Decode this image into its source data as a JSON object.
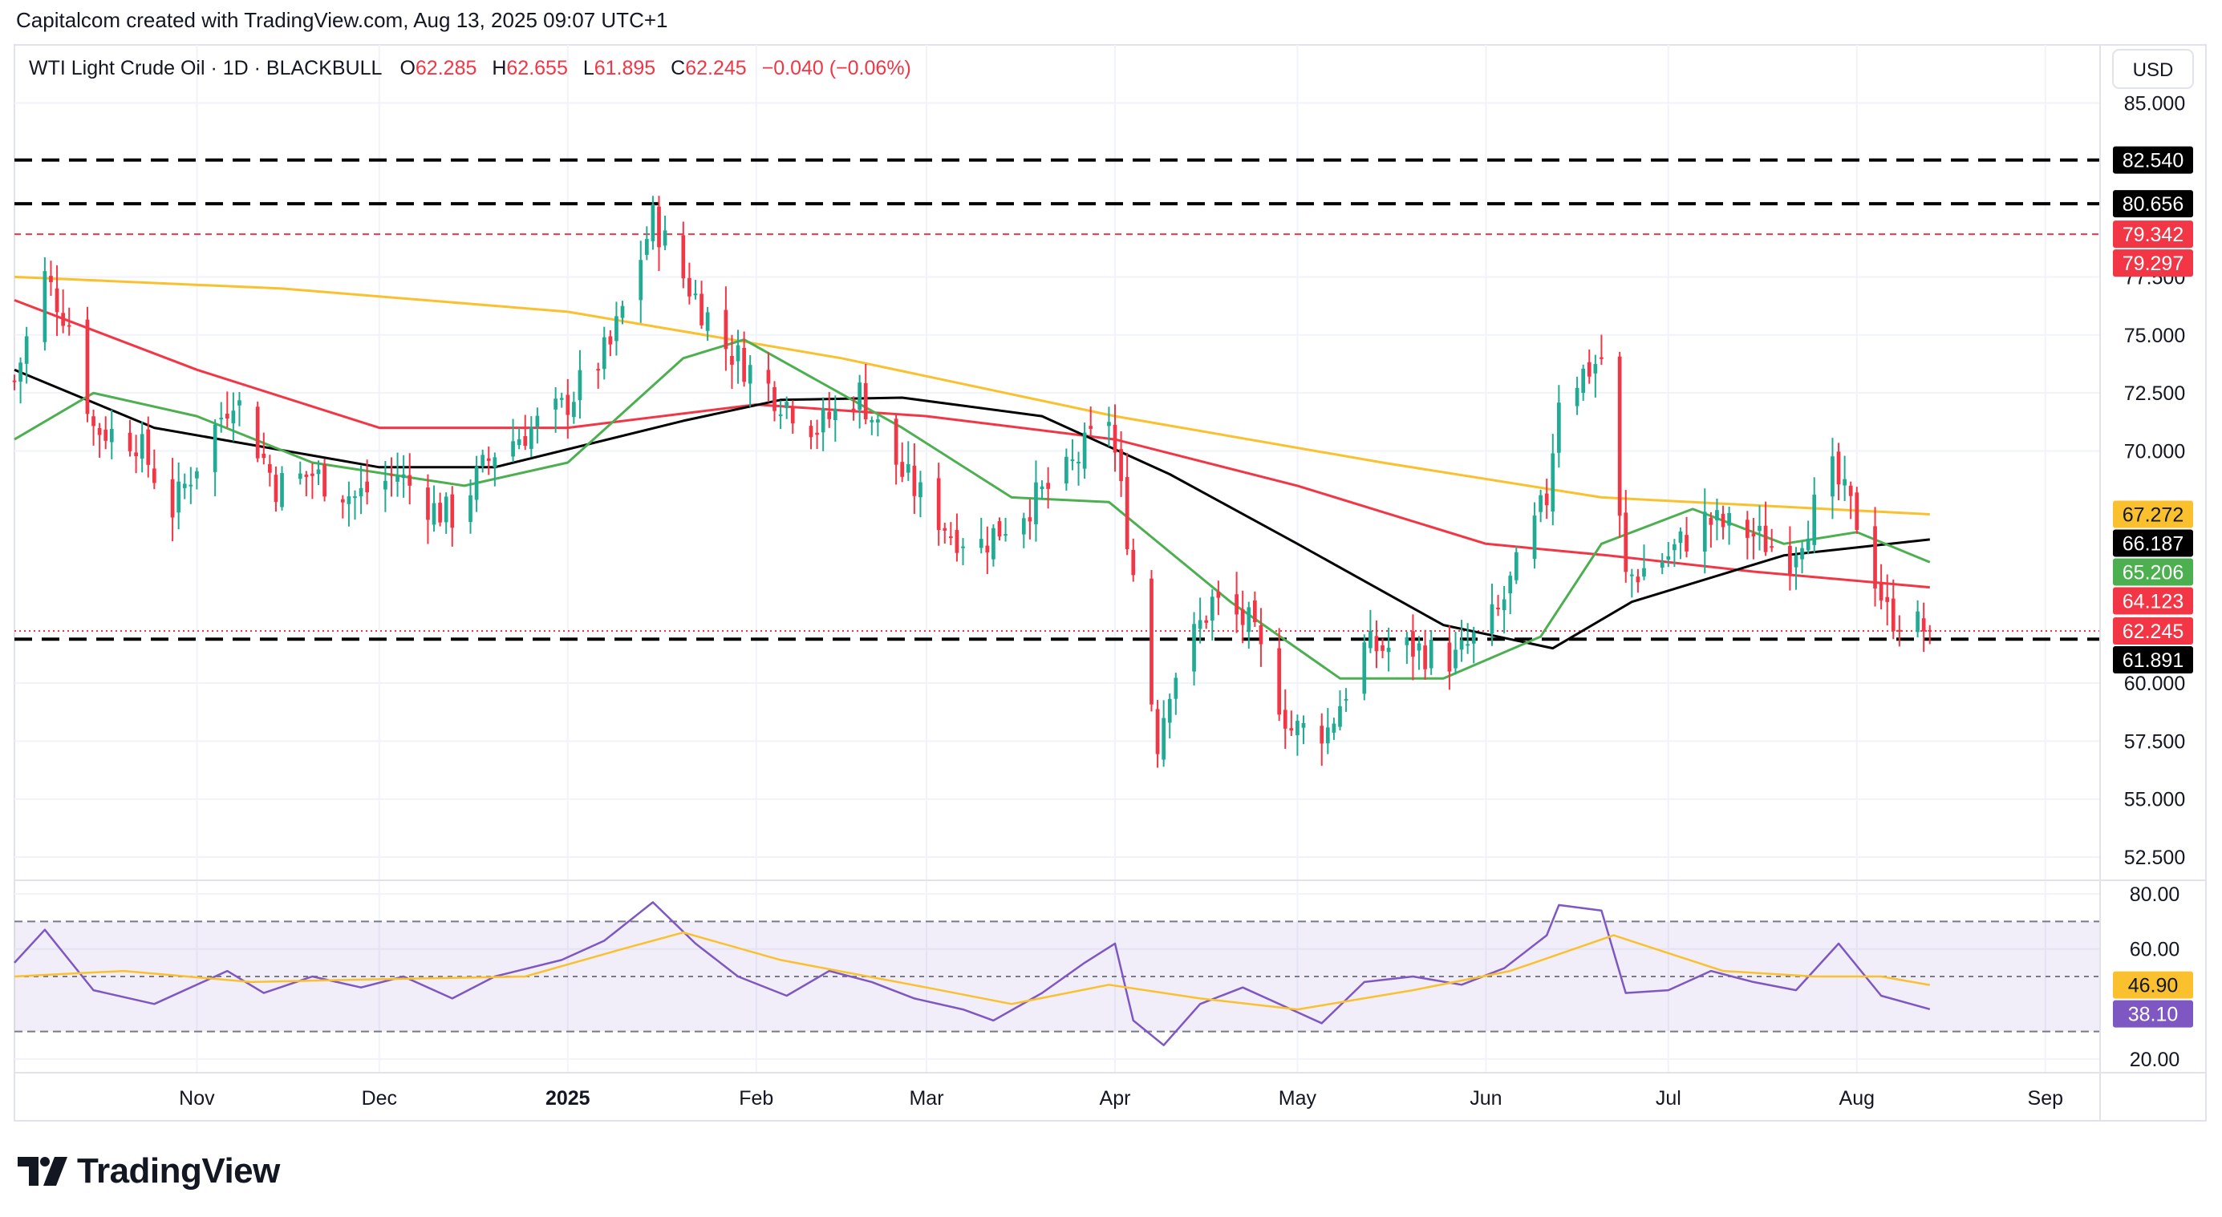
{
  "attribution": "Capitalcom created with TradingView.com, Aug 13, 2025 09:07 UTC+1",
  "brand": "TradingView",
  "colors": {
    "up": "#22ab94",
    "down": "#f23645",
    "sma20": "#4caf50",
    "sma50": "#000000",
    "sma100": "#f23645",
    "sma200": "#fbc02d",
    "rsi": "#7e57c2",
    "rsi_ma": "#fbc02d",
    "rsi_band": "#7e57c2",
    "grid": "#f0f3fa",
    "resistance_red": "#f23645",
    "level_black": "#000000"
  },
  "legend": {
    "symbol": "WTI Light Crude Oil · 1D · BLACKBULL",
    "open_label": "O",
    "open": "62.285",
    "high_label": "H",
    "high": "62.655",
    "low_label": "L",
    "low": "61.895",
    "close_label": "C",
    "close": "62.245",
    "change": "−0.040 (−0.06%)"
  },
  "currency": "USD",
  "chart_data": [
    {
      "type": "candlestick",
      "title": "WTI Light Crude Oil · 1D · BLACKBULL",
      "ylim": [
        51.5,
        87.5
      ],
      "y_ticks": [
        "85.000",
        "77.500",
        "75.000",
        "72.500",
        "70.000",
        "60.000",
        "57.500",
        "55.000",
        "52.500"
      ],
      "x_ticks": [
        {
          "label": "Nov",
          "date": "2024-11-01"
        },
        {
          "label": "Dec",
          "date": "2024-12-01"
        },
        {
          "label": "2025",
          "date": "2025-01-01",
          "bold": true
        },
        {
          "label": "Feb",
          "date": "2025-02-01"
        },
        {
          "label": "Mar",
          "date": "2025-03-01"
        },
        {
          "label": "Apr",
          "date": "2025-04-01"
        },
        {
          "label": "May",
          "date": "2025-05-01"
        },
        {
          "label": "Jun",
          "date": "2025-06-01"
        },
        {
          "label": "Jul",
          "date": "2025-07-01"
        },
        {
          "label": "Aug",
          "date": "2025-08-01"
        },
        {
          "label": "Sep",
          "date": "2025-09-01"
        }
      ],
      "date_range": [
        "2024-10-02",
        "2025-09-10"
      ],
      "last_candle_date": "2025-08-13",
      "horizontal_lines": [
        {
          "value": 82.54,
          "style": "dashed",
          "color": "#000000"
        },
        {
          "value": 80.656,
          "style": "dashed",
          "color": "#000000"
        },
        {
          "value": 79.342,
          "style": "dashed-fine",
          "color": "#f23645"
        },
        {
          "value": 61.891,
          "style": "dashed",
          "color": "#000000"
        },
        {
          "value": 62.245,
          "style": "dotted",
          "color": "#f23645"
        }
      ],
      "price_labels": [
        {
          "text": "82.540",
          "value": 82.54,
          "bg": "#000000",
          "fg": "#ffffff"
        },
        {
          "text": "80.656",
          "value": 80.656,
          "bg": "#000000",
          "fg": "#ffffff"
        },
        {
          "text": "79.342",
          "value": 79.342,
          "bg": "#f23645",
          "fg": "#ffffff"
        },
        {
          "text": "79.297",
          "value": 79.297,
          "bg": "#f23645",
          "fg": "#ffffff"
        },
        {
          "text": "67.272",
          "value": 67.272,
          "bg": "#fbc02d",
          "fg": "#131722"
        },
        {
          "text": "66.187",
          "value": 66.187,
          "bg": "#000000",
          "fg": "#ffffff"
        },
        {
          "text": "65.206",
          "value": 65.206,
          "bg": "#4caf50",
          "fg": "#ffffff"
        },
        {
          "text": "64.123",
          "value": 64.123,
          "bg": "#f23645",
          "fg": "#ffffff"
        },
        {
          "text": "62.245",
          "value": 62.245,
          "bg": "#f23645",
          "fg": "#ffffff"
        },
        {
          "text": "61.891",
          "value": 61.891,
          "bg": "#000000",
          "fg": "#ffffff"
        }
      ],
      "close_path": [
        [
          "2024-10-02",
          73.0
        ],
        [
          "2024-10-07",
          77.5
        ],
        [
          "2024-10-11",
          75.5
        ],
        [
          "2024-10-15",
          71.0
        ],
        [
          "2024-10-22",
          70.5
        ],
        [
          "2024-10-28",
          67.5
        ],
        [
          "2024-11-05",
          71.5
        ],
        [
          "2024-11-07",
          72.5
        ],
        [
          "2024-11-14",
          68.5
        ],
        [
          "2024-11-20",
          69.0
        ],
        [
          "2024-11-27",
          68.0
        ],
        [
          "2024-12-04",
          69.0
        ],
        [
          "2024-12-10",
          67.5
        ],
        [
          "2024-12-13",
          67.2
        ],
        [
          "2024-12-20",
          70.0
        ],
        [
          "2024-12-31",
          71.8
        ],
        [
          "2025-01-08",
          74.5
        ],
        [
          "2025-01-15",
          80.0
        ],
        [
          "2025-01-20",
          77.5
        ],
        [
          "2025-01-27",
          74.5
        ],
        [
          "2025-02-04",
          72.5
        ],
        [
          "2025-02-11",
          71.0
        ],
        [
          "2025-02-18",
          72.5
        ],
        [
          "2025-02-25",
          69.0
        ],
        [
          "2025-03-05",
          66.5
        ],
        [
          "2025-03-10",
          66.0
        ],
        [
          "2025-03-17",
          67.5
        ],
        [
          "2025-03-24",
          69.0
        ],
        [
          "2025-03-31",
          71.5
        ],
        [
          "2025-04-03",
          66.5
        ],
        [
          "2025-04-08",
          57.5
        ],
        [
          "2025-04-10",
          60.0
        ],
        [
          "2025-04-17",
          63.5
        ],
        [
          "2025-04-23",
          62.5
        ],
        [
          "2025-04-30",
          58.0
        ],
        [
          "2025-05-06",
          58.0
        ],
        [
          "2025-05-12",
          61.5
        ],
        [
          "2025-05-20",
          61.5
        ],
        [
          "2025-05-27",
          61.0
        ],
        [
          "2025-06-03",
          63.0
        ],
        [
          "2025-06-11",
          68.0
        ],
        [
          "2025-06-13",
          72.5
        ],
        [
          "2025-06-20",
          74.0
        ],
        [
          "2025-06-24",
          64.5
        ],
        [
          "2025-07-01",
          65.5
        ],
        [
          "2025-07-07",
          67.0
        ],
        [
          "2025-07-14",
          66.5
        ],
        [
          "2025-07-21",
          65.5
        ],
        [
          "2025-07-28",
          69.0
        ],
        [
          "2025-08-01",
          67.0
        ],
        [
          "2025-08-06",
          63.0
        ],
        [
          "2025-08-13",
          62.245
        ]
      ],
      "moving_averages": [
        {
          "period": 200,
          "color": "#fbc02d",
          "last": 67.272,
          "points": [
            [
              "2024-10-02",
              77.5
            ],
            [
              "2024-11-15",
              77.0
            ],
            [
              "2025-01-01",
              76.0
            ],
            [
              "2025-02-15",
              74.0
            ],
            [
              "2025-04-01",
              71.5
            ],
            [
              "2025-05-15",
              69.5
            ],
            [
              "2025-06-20",
              68.0
            ],
            [
              "2025-08-13",
              67.272
            ]
          ]
        },
        {
          "period": 100,
          "color": "#f23645",
          "last": 64.123,
          "points": [
            [
              "2024-10-02",
              76.5
            ],
            [
              "2024-11-01",
              73.5
            ],
            [
              "2024-12-01",
              71.0
            ],
            [
              "2025-01-01",
              71.0
            ],
            [
              "2025-02-01",
              72.0
            ],
            [
              "2025-03-01",
              71.5
            ],
            [
              "2025-04-01",
              70.5
            ],
            [
              "2025-05-01",
              68.5
            ],
            [
              "2025-06-01",
              66.0
            ],
            [
              "2025-06-21",
              65.5
            ],
            [
              "2025-07-15",
              64.8
            ],
            [
              "2025-08-13",
              64.123
            ]
          ]
        },
        {
          "period": 50,
          "color": "#000000",
          "last": 66.187,
          "points": [
            [
              "2024-10-02",
              73.5
            ],
            [
              "2024-10-25",
              71.0
            ],
            [
              "2024-12-01",
              69.3
            ],
            [
              "2024-12-20",
              69.3
            ],
            [
              "2025-01-20",
              71.3
            ],
            [
              "2025-02-05",
              72.2
            ],
            [
              "2025-02-25",
              72.3
            ],
            [
              "2025-03-20",
              71.5
            ],
            [
              "2025-04-10",
              69.0
            ],
            [
              "2025-05-01",
              66.0
            ],
            [
              "2025-05-25",
              62.5
            ],
            [
              "2025-06-12",
              61.5
            ],
            [
              "2025-06-25",
              63.5
            ],
            [
              "2025-07-20",
              65.5
            ],
            [
              "2025-08-13",
              66.187
            ]
          ]
        },
        {
          "period": 20,
          "color": "#4caf50",
          "last": 65.206,
          "points": [
            [
              "2024-10-02",
              70.5
            ],
            [
              "2024-10-15",
              72.5
            ],
            [
              "2024-11-01",
              71.5
            ],
            [
              "2024-11-20",
              69.5
            ],
            [
              "2024-12-15",
              68.5
            ],
            [
              "2025-01-01",
              69.5
            ],
            [
              "2025-01-20",
              74.0
            ],
            [
              "2025-01-30",
              74.8
            ],
            [
              "2025-02-25",
              71.0
            ],
            [
              "2025-03-15",
              68.0
            ],
            [
              "2025-03-31",
              67.8
            ],
            [
              "2025-04-20",
              63.5
            ],
            [
              "2025-05-08",
              60.2
            ],
            [
              "2025-05-25",
              60.2
            ],
            [
              "2025-06-10",
              62.0
            ],
            [
              "2025-06-20",
              66.0
            ],
            [
              "2025-07-05",
              67.5
            ],
            [
              "2025-07-20",
              66.0
            ],
            [
              "2025-08-01",
              66.5
            ],
            [
              "2025-08-13",
              65.206
            ]
          ]
        }
      ]
    },
    {
      "type": "line",
      "title": "RSI",
      "ylim": [
        15,
        85
      ],
      "y_ticks": [
        "80.00",
        "60.00",
        "20.00"
      ],
      "band": [
        30,
        70
      ],
      "midline": 50,
      "values_labels": [
        {
          "text": "46.90",
          "value": 46.9,
          "bg": "#fbc02d",
          "fg": "#131722"
        },
        {
          "text": "38.10",
          "value": 38.1,
          "bg": "#7e57c2",
          "fg": "#ffffff"
        }
      ],
      "series": [
        {
          "color": "#7e57c2",
          "points": [
            [
              "2024-10-02",
              55
            ],
            [
              "2024-10-07",
              67
            ],
            [
              "2024-10-15",
              45
            ],
            [
              "2024-10-25",
              40
            ],
            [
              "2024-11-06",
              52
            ],
            [
              "2024-11-12",
              44
            ],
            [
              "2024-11-20",
              50
            ],
            [
              "2024-11-28",
              46
            ],
            [
              "2024-12-05",
              50
            ],
            [
              "2024-12-13",
              42
            ],
            [
              "2024-12-20",
              50
            ],
            [
              "2024-12-31",
              56
            ],
            [
              "2025-01-07",
              63
            ],
            [
              "2025-01-15",
              77
            ],
            [
              "2025-01-22",
              62
            ],
            [
              "2025-01-29",
              50
            ],
            [
              "2025-02-06",
              43
            ],
            [
              "2025-02-13",
              52
            ],
            [
              "2025-02-20",
              48
            ],
            [
              "2025-02-27",
              42
            ],
            [
              "2025-03-07",
              38
            ],
            [
              "2025-03-12",
              34
            ],
            [
              "2025-03-20",
              44
            ],
            [
              "2025-03-27",
              55
            ],
            [
              "2025-04-01",
              62
            ],
            [
              "2025-04-04",
              34
            ],
            [
              "2025-04-09",
              25
            ],
            [
              "2025-04-15",
              40
            ],
            [
              "2025-04-22",
              46
            ],
            [
              "2025-04-30",
              38
            ],
            [
              "2025-05-05",
              33
            ],
            [
              "2025-05-12",
              48
            ],
            [
              "2025-05-20",
              50
            ],
            [
              "2025-05-28",
              47
            ],
            [
              "2025-06-04",
              53
            ],
            [
              "2025-06-11",
              65
            ],
            [
              "2025-06-13",
              76
            ],
            [
              "2025-06-20",
              74
            ],
            [
              "2025-06-24",
              44
            ],
            [
              "2025-07-01",
              45
            ],
            [
              "2025-07-08",
              52
            ],
            [
              "2025-07-15",
              48
            ],
            [
              "2025-07-22",
              45
            ],
            [
              "2025-07-29",
              62
            ],
            [
              "2025-08-05",
              43
            ],
            [
              "2025-08-13",
              38.1
            ]
          ]
        },
        {
          "color": "#fbc02d",
          "points": [
            [
              "2024-10-02",
              50
            ],
            [
              "2024-10-20",
              52
            ],
            [
              "2024-11-10",
              48
            ],
            [
              "2024-12-01",
              49
            ],
            [
              "2024-12-25",
              50
            ],
            [
              "2025-01-10",
              60
            ],
            [
              "2025-01-20",
              66
            ],
            [
              "2025-02-05",
              56
            ],
            [
              "2025-03-01",
              46
            ],
            [
              "2025-03-15",
              40
            ],
            [
              "2025-03-31",
              47
            ],
            [
              "2025-04-15",
              42
            ],
            [
              "2025-05-01",
              38
            ],
            [
              "2025-05-20",
              45
            ],
            [
              "2025-06-05",
              52
            ],
            [
              "2025-06-22",
              65
            ],
            [
              "2025-07-10",
              52
            ],
            [
              "2025-07-25",
              50
            ],
            [
              "2025-08-05",
              50
            ],
            [
              "2025-08-13",
              46.9
            ]
          ]
        }
      ]
    }
  ]
}
